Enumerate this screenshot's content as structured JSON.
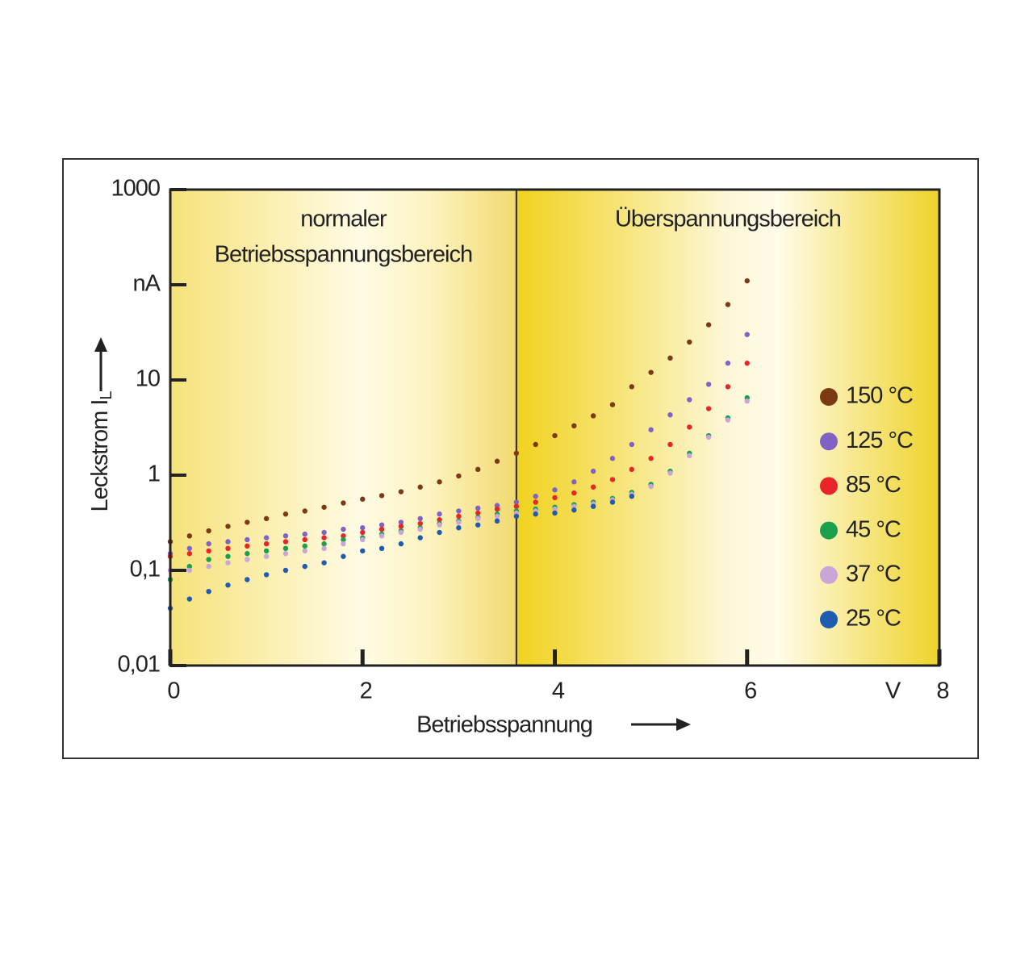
{
  "chart_data": {
    "type": "scatter",
    "xlabel": "Betriebsspannung",
    "ylabel": {
      "text": "Leckstrom I",
      "subscript": "L"
    },
    "x_unit": "V",
    "log_y": true,
    "xlim": [
      0,
      8
    ],
    "xticks": [
      0,
      2,
      4,
      6,
      8
    ],
    "ylim": [
      0.01,
      1000
    ],
    "yticks": [
      {
        "value": 0.01,
        "label": "0,01"
      },
      {
        "value": 0.1,
        "label": "0,1"
      },
      1,
      10,
      {
        "value": 100,
        "label": "nA"
      },
      1000
    ],
    "regions": [
      {
        "label": [
          "normaler",
          "Betriebsspannungsbereich"
        ]
      },
      {
        "label": [
          "Überspannungsbereich"
        ]
      }
    ],
    "region_boundary": 3.6,
    "legend": "right",
    "x": [
      0,
      0.2,
      0.4,
      0.6,
      0.8,
      1.0,
      1.2,
      1.4,
      1.6,
      1.8,
      2.0,
      2.2,
      2.4,
      2.6,
      2.8,
      3.0,
      3.2,
      3.4,
      3.6,
      3.8,
      4.0,
      4.2,
      4.4,
      4.6,
      4.8,
      5.0,
      5.2,
      5.4,
      5.6,
      5.8,
      6.0
    ],
    "series": [
      {
        "name": "150 °C",
        "color": "#7b3a14",
        "values": [
          0.2,
          0.23,
          0.26,
          0.29,
          0.32,
          0.35,
          0.39,
          0.42,
          0.46,
          0.51,
          0.56,
          0.61,
          0.67,
          0.75,
          0.85,
          0.98,
          1.15,
          1.4,
          1.7,
          2.1,
          2.6,
          3.3,
          4.2,
          5.5,
          8.5,
          12,
          17,
          25,
          38,
          62,
          110
        ]
      },
      {
        "name": "125 °C",
        "color": "#7f62c4",
        "values": [
          0.15,
          0.17,
          0.19,
          0.2,
          0.21,
          0.22,
          0.23,
          0.24,
          0.25,
          0.27,
          0.28,
          0.3,
          0.32,
          0.35,
          0.39,
          0.42,
          0.45,
          0.48,
          0.52,
          0.6,
          0.7,
          0.85,
          1.1,
          1.5,
          2.1,
          3.0,
          4.3,
          6.2,
          9,
          15,
          30
        ]
      },
      {
        "name": "85 °C",
        "color": "#e8262a",
        "values": [
          0.14,
          0.15,
          0.16,
          0.17,
          0.18,
          0.19,
          0.2,
          0.21,
          0.22,
          0.23,
          0.25,
          0.27,
          0.29,
          0.31,
          0.34,
          0.37,
          0.4,
          0.44,
          0.47,
          0.52,
          0.58,
          0.65,
          0.75,
          0.9,
          1.15,
          1.5,
          2.1,
          3.2,
          5,
          8.5,
          15
        ]
      },
      {
        "name": "45 °C",
        "color": "#1aa04a",
        "values": [
          0.08,
          0.11,
          0.13,
          0.14,
          0.15,
          0.16,
          0.17,
          0.18,
          0.19,
          0.21,
          0.22,
          0.24,
          0.26,
          0.28,
          0.31,
          0.33,
          0.36,
          0.39,
          0.42,
          0.44,
          0.46,
          0.49,
          0.52,
          0.57,
          0.66,
          0.8,
          1.1,
          1.7,
          2.6,
          4,
          6.5
        ]
      },
      {
        "name": "37 °C",
        "color": "#c9a5d8",
        "values": [
          0.1,
          0.1,
          0.11,
          0.12,
          0.13,
          0.14,
          0.15,
          0.16,
          0.17,
          0.19,
          0.21,
          0.23,
          0.25,
          0.27,
          0.3,
          0.32,
          0.35,
          0.37,
          0.4,
          0.42,
          0.44,
          0.47,
          0.5,
          0.55,
          0.63,
          0.76,
          1.05,
          1.6,
          2.5,
          3.8,
          6
        ]
      },
      {
        "name": "25 °C",
        "color": "#1f5bb0",
        "values": [
          0.04,
          0.05,
          0.06,
          0.07,
          0.08,
          0.09,
          0.1,
          0.11,
          0.12,
          0.14,
          0.16,
          0.17,
          0.19,
          0.22,
          0.25,
          0.28,
          0.3,
          0.33,
          0.37,
          0.39,
          0.4,
          0.43,
          0.47,
          0.52,
          0.6,
          null,
          null,
          null,
          null,
          null,
          null
        ]
      }
    ]
  }
}
